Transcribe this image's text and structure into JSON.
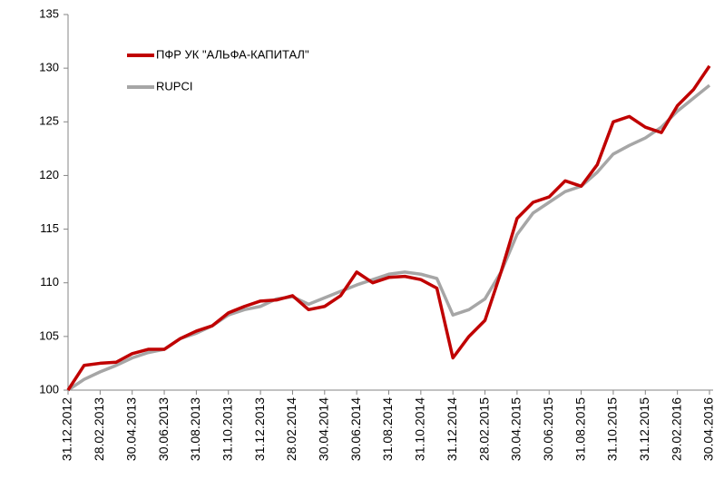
{
  "chart_data": {
    "type": "line",
    "categories": [
      "31.12.2012",
      null,
      "28.02.2013",
      null,
      "30.04.2013",
      null,
      "30.06.2013",
      null,
      "31.08.2013",
      null,
      "31.10.2013",
      null,
      "31.12.2013",
      null,
      "28.02.2014",
      null,
      "30.04.2014",
      null,
      "30.06.2014",
      null,
      "31.08.2014",
      null,
      "31.10.2014",
      null,
      "31.12.2014",
      null,
      "28.02.2015",
      null,
      "30.04.2015",
      null,
      "30.06.2015",
      null,
      "31.08.2015",
      null,
      "31.10.2015",
      null,
      "31.12.2015",
      null,
      "29.02.2016",
      null,
      "30.04.2016"
    ],
    "series": [
      {
        "name": "ПФР УК \"АЛЬФА-КАПИТАЛ\"",
        "color": "#c00000",
        "values": [
          100,
          102.3,
          102.5,
          102.6,
          103.4,
          103.8,
          103.8,
          104.8,
          105.5,
          106.0,
          107.2,
          107.8,
          108.3,
          108.4,
          108.8,
          107.5,
          107.8,
          108.8,
          111.0,
          110.0,
          110.5,
          110.6,
          110.3,
          109.5,
          103.0,
          105.0,
          106.5,
          111.0,
          116.0,
          117.5,
          118.0,
          119.5,
          119.0,
          121.0,
          125.0,
          125.5,
          124.5,
          124.0,
          126.5,
          128.0,
          130.2
        ]
      },
      {
        "name": "RUPCI",
        "color": "#a6a6a6",
        "values": [
          100,
          101.0,
          101.7,
          102.3,
          103.0,
          103.5,
          103.8,
          104.8,
          105.3,
          106.0,
          107.0,
          107.5,
          107.8,
          108.5,
          108.7,
          108.0,
          108.6,
          109.2,
          109.8,
          110.3,
          110.8,
          111.0,
          110.8,
          110.4,
          107.0,
          107.5,
          108.5,
          111.0,
          114.5,
          116.5,
          117.5,
          118.5,
          119.0,
          120.3,
          122.0,
          122.8,
          123.5,
          124.5,
          126.0,
          127.2,
          128.4
        ]
      }
    ],
    "ylim": [
      100,
      135
    ],
    "yticks": [
      100,
      105,
      110,
      115,
      120,
      125,
      130,
      135
    ],
    "grid": false,
    "legend": "top-left"
  }
}
